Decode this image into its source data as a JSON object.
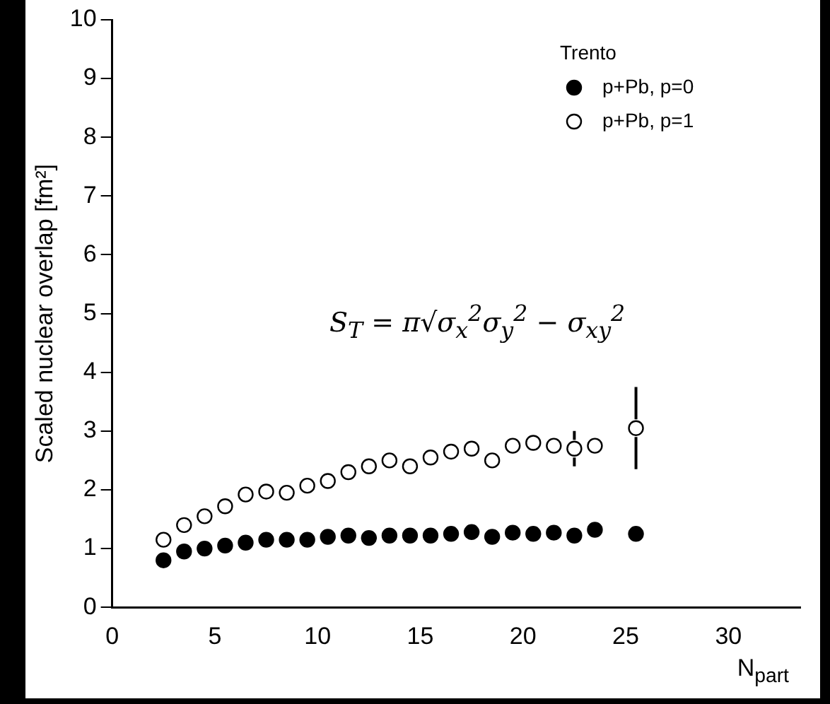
{
  "chart_data": {
    "type": "scatter",
    "xlabel": "N$_{part}$",
    "ylabel": "Scaled nuclear overlap [fm²]",
    "legend_title": "Trento",
    "legend": "top right",
    "marker": "circle",
    "x": [
      2.5,
      3.5,
      4.5,
      5.5,
      6.5,
      7.5,
      8.5,
      9.5,
      10.5,
      11.5,
      12.5,
      13.5,
      14.5,
      15.5,
      16.5,
      17.5,
      18.5,
      19.5,
      20.5,
      21.5,
      22.5,
      23.5,
      25.5
    ],
    "series": [
      {
        "name": "p+Pb, p=0",
        "color": "#000000",
        "values": [
          0.8,
          0.95,
          1.0,
          1.05,
          1.1,
          1.15,
          1.15,
          1.15,
          1.2,
          1.22,
          1.18,
          1.22,
          1.22,
          1.22,
          1.25,
          1.28,
          1.2,
          1.27,
          1.25,
          1.27,
          1.22,
          1.32,
          1.25
        ]
      },
      {
        "name": "p+Pb, p=1",
        "color": "#ffffff",
        "values": [
          1.15,
          1.4,
          1.55,
          1.72,
          1.92,
          1.97,
          1.95,
          2.07,
          2.15,
          2.3,
          2.4,
          2.5,
          2.4,
          2.55,
          2.65,
          2.7,
          2.5,
          2.75,
          2.8,
          2.75,
          2.7,
          2.75,
          3.05
        ],
        "errors": [
          null,
          null,
          null,
          null,
          null,
          null,
          null,
          null,
          null,
          null,
          null,
          null,
          null,
          null,
          null,
          null,
          null,
          null,
          null,
          null,
          0.3,
          null,
          0.7
        ]
      }
    ],
    "xlim": [
      0,
      33.5
    ],
    "xticks": [
      0,
      5,
      10,
      15,
      20,
      25,
      30
    ],
    "ylim": [
      0,
      10
    ],
    "yticks": [
      0,
      1,
      2,
      3,
      4,
      5,
      6,
      7,
      8,
      9,
      10
    ],
    "annotations": [
      "S$_{T}$ = π√σ$_{x}$$^{2}$σ$_{y}$$^{2}$ − σ$_{xy}$$^{2}$"
    ]
  }
}
